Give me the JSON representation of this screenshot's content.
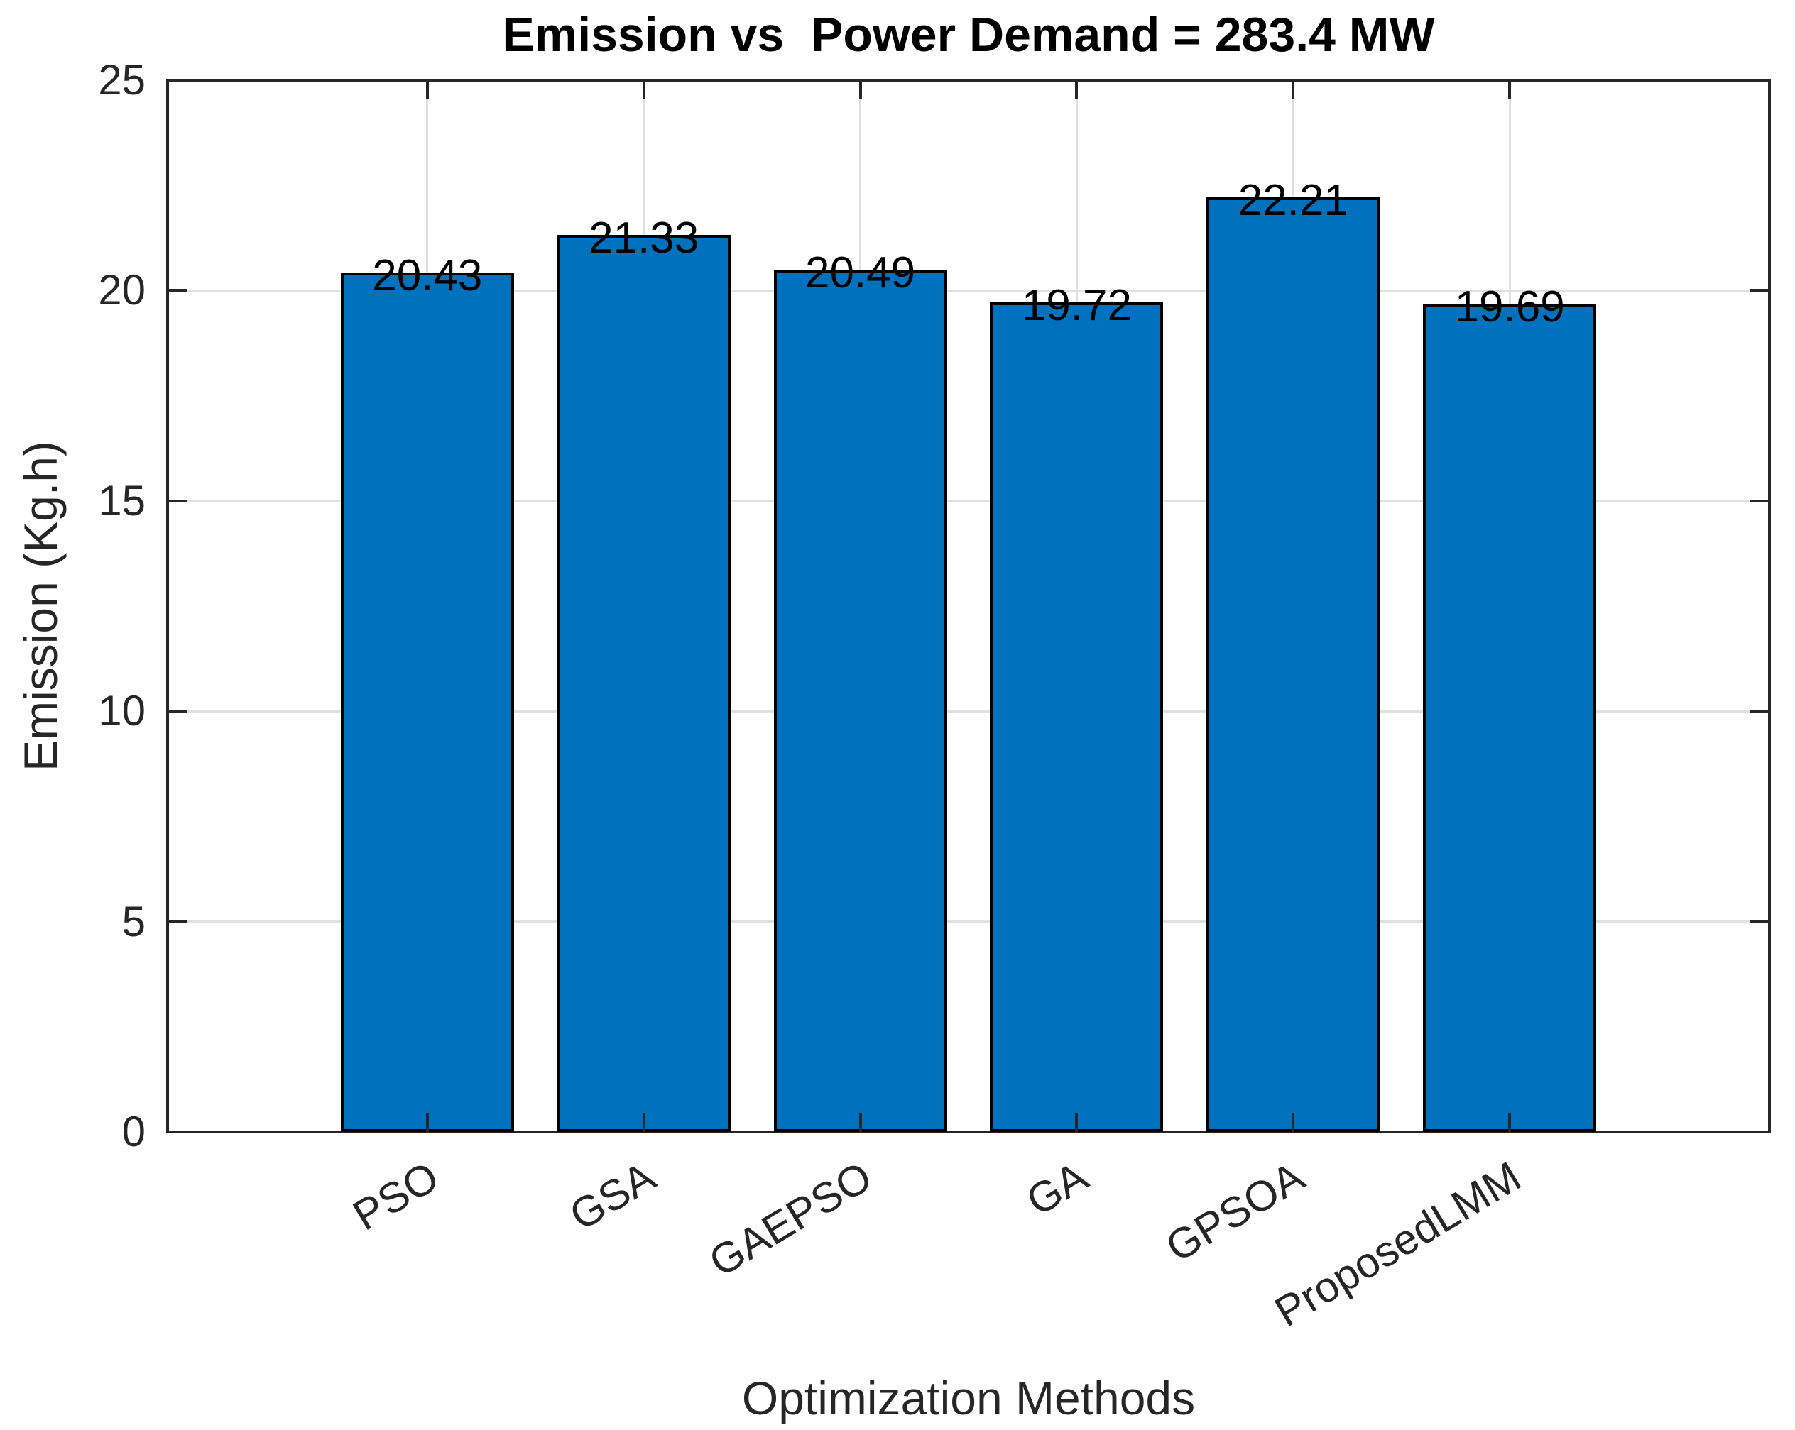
{
  "chart_data": {
    "type": "bar",
    "title": "Emission vs  Power Demand = 283.4 MW",
    "xlabel": "Optimization Methods",
    "ylabel": "Emission (Kg.h)",
    "categories": [
      "PSO",
      "GSA",
      "GAEPSO",
      "GA",
      "GPSOA",
      "ProposedLMM"
    ],
    "values": [
      20.43,
      21.33,
      20.49,
      19.72,
      22.21,
      19.69
    ],
    "value_labels": [
      "20.43",
      "21.33",
      "20.49",
      "19.72",
      "22.21",
      "19.69"
    ],
    "ylim": [
      0,
      25
    ],
    "yticks": [
      0,
      5,
      10,
      15,
      20,
      25
    ],
    "ytick_labels": [
      "0",
      "5",
      "10",
      "15",
      "20",
      "25"
    ],
    "grid": true,
    "legend_position": "none",
    "bar_color": "#0072BD",
    "bar_edge_color": "#000000",
    "axis_color": "#262626",
    "grid_color": "#e0e0e0"
  }
}
